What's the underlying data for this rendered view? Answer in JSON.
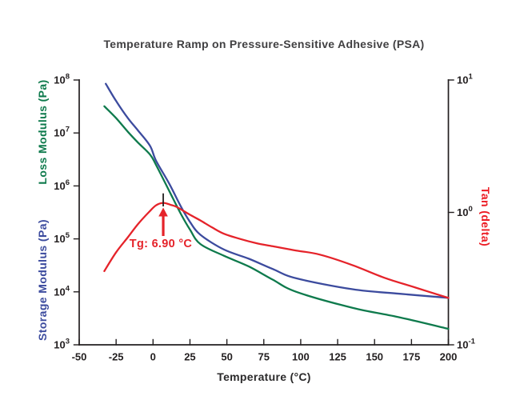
{
  "colors": {
    "storage": "#3c4b9e",
    "loss": "#0e7a4c",
    "tan": "#e5232a",
    "axis": "#231f20",
    "tick_text": "#231f20",
    "title_text": "#414042"
  },
  "chart_data": {
    "type": "line",
    "title": "Temperature Ramp on Pressure-Sensitive Adhesive (PSA)",
    "x_axis": {
      "label": "Temperature (°C)",
      "min": -50,
      "max": 200,
      "ticks": [
        -50,
        -25,
        0,
        25,
        50,
        75,
        100,
        125,
        150,
        175,
        200
      ]
    },
    "y_axis_left": {
      "loss_label": "Loss Modulus  (Pa)",
      "storage_label": "Storage Modulus (Pa)",
      "scale": "log",
      "unit": "Pa",
      "tick_exponents": [
        8,
        7,
        6,
        5,
        4,
        3
      ],
      "range": [
        1000.0,
        100000000.0
      ]
    },
    "y_axis_right": {
      "label": "Tan (delta)",
      "scale": "log",
      "tick_exponents": [
        1,
        0,
        -1
      ],
      "range": [
        0.1,
        10
      ]
    },
    "series": [
      {
        "name": "Storage Modulus",
        "axis": "left",
        "color_key": "storage",
        "x": [
          -32,
          -25,
          -17,
          -10,
          -2,
          2,
          11,
          19,
          25,
          32,
          48,
          65,
          81,
          97,
          135,
          167,
          200
        ],
        "y": [
          85000000.0,
          40000000.0,
          19000000.0,
          11000000.0,
          5700000.0,
          3000000.0,
          1100000.0,
          400000.0,
          210000.0,
          120000.0,
          63000.0,
          42000.0,
          27000.0,
          18000.0,
          11200.0,
          9200.0,
          7700.0
        ]
      },
      {
        "name": "Loss Modulus",
        "axis": "left",
        "color_key": "loss",
        "x": [
          -33,
          -25,
          -17,
          -10,
          -2,
          2,
          11,
          19,
          25,
          32,
          48,
          65,
          81,
          97,
          135,
          167,
          200
        ],
        "y": [
          32000000.0,
          19000000.0,
          10500000.0,
          6500000.0,
          3900000.0,
          2500000.0,
          800000.0,
          290000.0,
          150000.0,
          80000.0,
          48000.0,
          30000.0,
          17000.0,
          10000.0,
          5000.0,
          3300.0,
          2000.0
        ]
      },
      {
        "name": "Tan (delta)",
        "axis": "right",
        "color_key": "tan",
        "x": [
          -33,
          -25,
          -17,
          -10,
          -3,
          2,
          6.9,
          12,
          16,
          25,
          32,
          40,
          48,
          59,
          70,
          81,
          97,
          113,
          135,
          157,
          178,
          200
        ],
        "y": [
          0.36,
          0.5,
          0.65,
          0.82,
          1.0,
          1.13,
          1.18,
          1.14,
          1.1,
          0.96,
          0.87,
          0.77,
          0.69,
          0.63,
          0.585,
          0.555,
          0.515,
          0.48,
          0.4,
          0.32,
          0.27,
          0.226
        ]
      }
    ],
    "annotation": {
      "text": "Tg: 6.90 °C",
      "tg_c": 6.9,
      "peak_tan": 1.18
    }
  }
}
